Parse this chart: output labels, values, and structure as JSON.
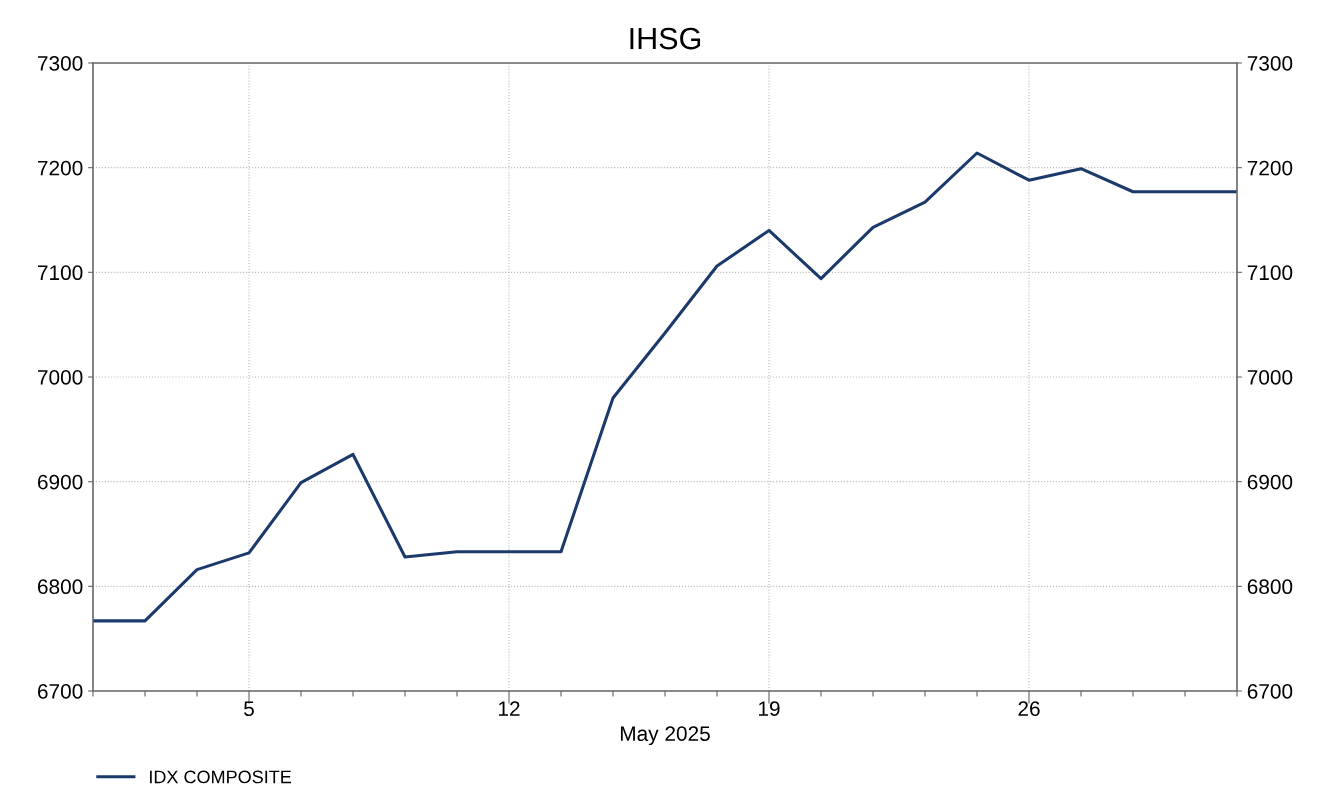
{
  "chart_data": {
    "type": "line",
    "title": "IHSG",
    "xlabel": "May 2025",
    "categories": [
      null,
      null,
      null,
      "5",
      null,
      null,
      null,
      null,
      "12",
      null,
      null,
      null,
      null,
      "19",
      null,
      null,
      null,
      null,
      "26",
      null,
      null,
      null,
      null
    ],
    "series": [
      {
        "name": "IDX COMPOSITE",
        "color": "#1b3a6b",
        "values": [
          6767,
          6767,
          6816,
          6832,
          6899,
          6926,
          6828,
          6833,
          6833,
          6833,
          6980,
          7042,
          7106,
          7140,
          7094,
          7143,
          7167,
          7214,
          7188,
          7199,
          7177,
          7177,
          7177
        ]
      }
    ],
    "ylim": [
      6700,
      7300
    ],
    "yticks": [
      6700,
      6800,
      6900,
      7000,
      7100,
      7200,
      7300
    ],
    "y2lim": [
      6700,
      7300
    ],
    "y2ticks": [
      6700,
      6800,
      6900,
      7000,
      7100,
      7200,
      7300
    ],
    "grid": true,
    "legend": "bottom left",
    "marker": "none",
    "line_style": "solid"
  }
}
